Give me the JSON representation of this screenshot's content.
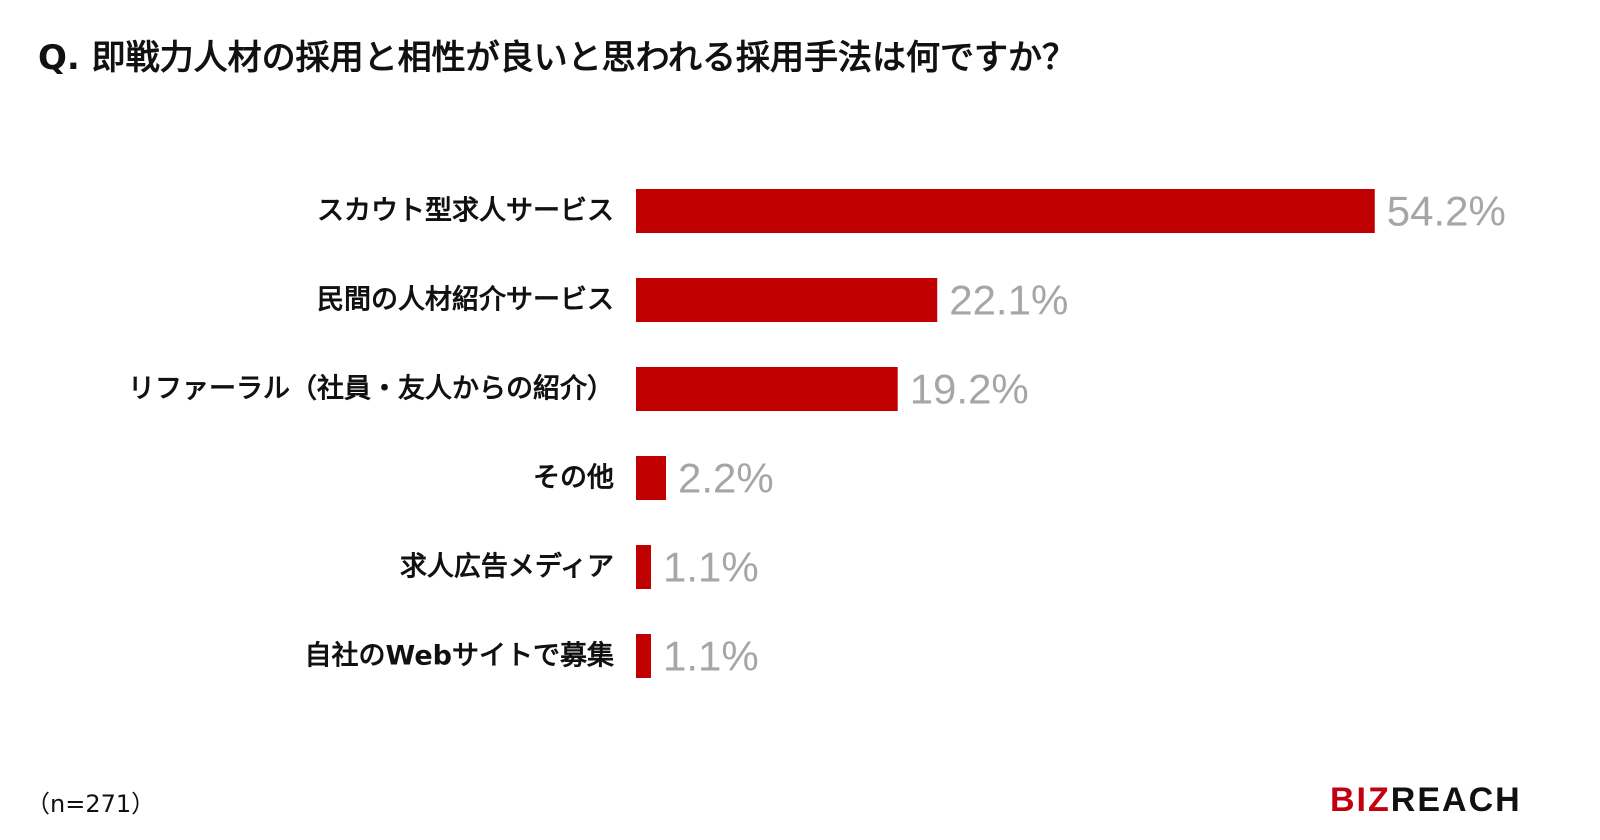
{
  "title": "Q. 即戦力人材の採用と相性が良いと思われる採用手法は何ですか？",
  "footnote": "（n=271）",
  "logo": {
    "text_brand": "BIZ",
    "text_rest": "REACH",
    "brand_color": "#c20010"
  },
  "colors": {
    "bar": "#c00000",
    "value_label": "#a6a6a6"
  },
  "chart_data": {
    "type": "bar",
    "orientation": "horizontal",
    "categories": [
      "スカウト型求人サービス",
      "民間の人材紹介サービス",
      "リファーラル（社員・友人からの紹介）",
      "その他",
      "求人広告メディア",
      "自社のWebサイトで募集"
    ],
    "values": [
      54.2,
      22.1,
      19.2,
      2.2,
      1.1,
      1.1
    ],
    "value_labels": [
      "54.2%",
      "22.1%",
      "19.2%",
      "2.2%",
      "1.1%",
      "1.1%"
    ],
    "unit": "%",
    "title": "Q. 即戦力人材の採用と相性が良いと思われる採用手法は何ですか？",
    "xlabel": "",
    "ylabel": "",
    "xlim": [
      0,
      100
    ],
    "grid": false,
    "legend": "none"
  }
}
